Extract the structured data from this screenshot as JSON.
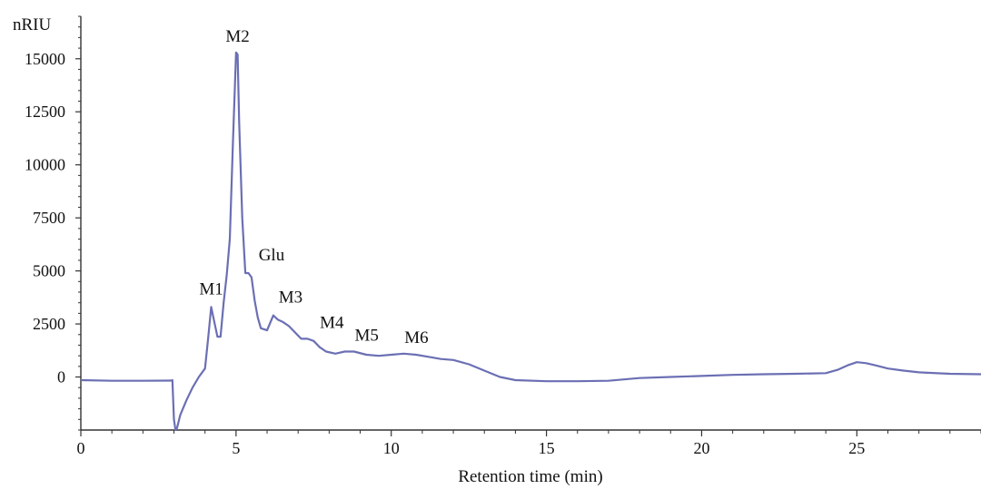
{
  "chart_data": {
    "type": "line",
    "title": "",
    "xlabel": "Retention time (min)",
    "ylabel": "nRIU",
    "xlim": [
      0,
      29
    ],
    "ylim": [
      -2500,
      17000
    ],
    "x_ticks": [
      0,
      5,
      10,
      15,
      20,
      25
    ],
    "y_ticks": [
      0,
      2500,
      5000,
      7500,
      10000,
      12500,
      15000
    ],
    "grid": false,
    "colors": {
      "line": "#6b6fb3",
      "axis": "#333333"
    },
    "series": [
      {
        "x": [
          0,
          1,
          2,
          2.9,
          2.95,
          3.0,
          3.05,
          3.1,
          3.2,
          3.4,
          3.6,
          3.8,
          4.0,
          4.1,
          4.2,
          4.3,
          4.4,
          4.5,
          4.6,
          4.7,
          4.8,
          4.9,
          5.0,
          5.05,
          5.1,
          5.2,
          5.3,
          5.4,
          5.5,
          5.6,
          5.7,
          5.8,
          6.0,
          6.2,
          6.35,
          6.5,
          6.7,
          6.9,
          7.1,
          7.3,
          7.5,
          7.7,
          7.9,
          8.2,
          8.5,
          8.8,
          9.2,
          9.6,
          10.0,
          10.4,
          10.8,
          11.2,
          11.6,
          12.0,
          12.5,
          13.0,
          13.5,
          14.0,
          15.0,
          16.0,
          17.0,
          18.0,
          19.0,
          20.0,
          21.0,
          22.0,
          23.0,
          24.0,
          24.4,
          24.7,
          25.0,
          25.3,
          25.6,
          26.0,
          26.5,
          27.0,
          28.0,
          29.0
        ],
        "y": [
          -150,
          -180,
          -180,
          -170,
          -150,
          -2000,
          -2600,
          -2400,
          -1800,
          -1100,
          -500,
          0,
          400,
          1800,
          3300,
          2600,
          1900,
          1900,
          3500,
          4800,
          6500,
          11000,
          15300,
          15200,
          12000,
          7500,
          4900,
          4900,
          4700,
          3600,
          2800,
          2300,
          2200,
          2900,
          2700,
          2600,
          2400,
          2100,
          1800,
          1800,
          1700,
          1400,
          1200,
          1100,
          1200,
          1200,
          1050,
          1000,
          1050,
          1100,
          1050,
          950,
          850,
          800,
          600,
          300,
          0,
          -150,
          -200,
          -200,
          -180,
          -50,
          0,
          50,
          100,
          130,
          150,
          180,
          350,
          550,
          700,
          650,
          550,
          400,
          300,
          220,
          150,
          130
        ]
      }
    ],
    "annotations": [
      {
        "text": "M1",
        "x": 4.2,
        "y": 3300
      },
      {
        "text": "M2",
        "x": 5.05,
        "y": 15300
      },
      {
        "text": "Glu",
        "x": 5.5,
        "y": 4900
      },
      {
        "text": "M3",
        "x": 6.35,
        "y": 2900
      },
      {
        "text": "M4",
        "x": 7.5,
        "y": 1800
      },
      {
        "text": "M5",
        "x": 8.8,
        "y": 1200
      },
      {
        "text": "M6",
        "x": 10.4,
        "y": 1100
      }
    ]
  }
}
